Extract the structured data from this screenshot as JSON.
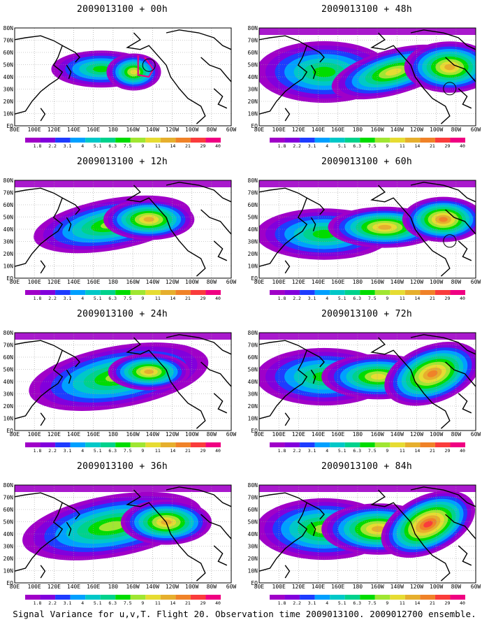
{
  "panels": [
    {
      "title": "2009013100 + 00h",
      "features": [
        "box",
        "circle"
      ]
    },
    {
      "title": "2009013100 + 48h",
      "features": [
        "circle"
      ]
    },
    {
      "title": "2009013100 + 12h",
      "features": []
    },
    {
      "title": "2009013100 + 60h",
      "features": [
        "circle"
      ]
    },
    {
      "title": "2009013100 + 24h",
      "features": []
    },
    {
      "title": "2009013100 + 72h",
      "features": []
    },
    {
      "title": "2009013100 + 36h",
      "features": []
    },
    {
      "title": "2009013100 + 84h",
      "features": []
    }
  ],
  "map": {
    "lon_labels": [
      "80E",
      "100E",
      "120E",
      "140E",
      "160E",
      "180",
      "160W",
      "140W",
      "120W",
      "100W",
      "80W",
      "60W"
    ],
    "lat_labels": [
      "80N",
      "70N",
      "60N",
      "50N",
      "40N",
      "30N",
      "20N",
      "10N",
      "EQ"
    ]
  },
  "colorbar": {
    "labels": [
      "1.8",
      "2.2",
      "3.1",
      "4",
      "5.1",
      "6.3",
      "7.5",
      "9",
      "11",
      "14",
      "21",
      "29",
      "40"
    ],
    "colors": [
      "#a000c8",
      "#8200dc",
      "#1e3cff",
      "#00a0ff",
      "#00c8c8",
      "#00d28c",
      "#00dc00",
      "#a0e632",
      "#e6dc32",
      "#e6af2d",
      "#f08228",
      "#fa3c3c",
      "#f00082"
    ]
  },
  "caption": "Signal Variance for u,v,T. Flight 20. Observation time 2009013100. 2009012700 ensemble."
}
